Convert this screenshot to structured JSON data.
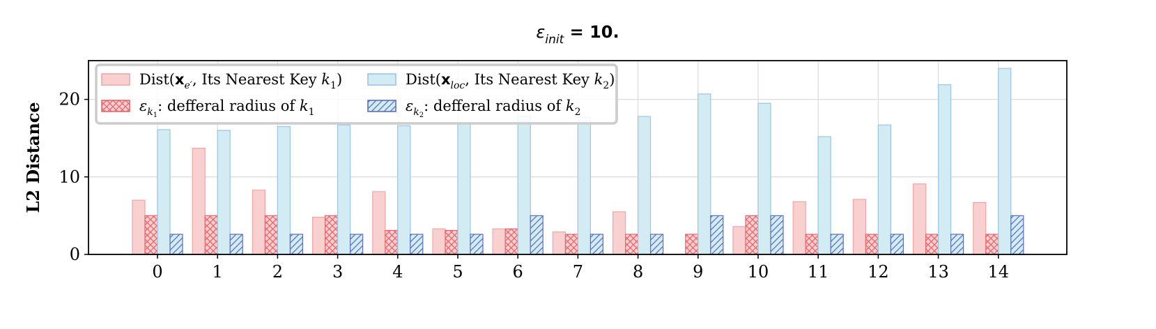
{
  "chart_data": {
    "type": "bar",
    "title": "ε_init = 10.",
    "ylabel": "L2 Distance",
    "xlabel": "",
    "categories": [
      "0",
      "1",
      "2",
      "3",
      "4",
      "5",
      "6",
      "7",
      "8",
      "9",
      "10",
      "11",
      "12",
      "13",
      "14"
    ],
    "ylim": [
      0,
      25
    ],
    "yticks": [
      0,
      10,
      20
    ],
    "grid": true,
    "legend_position": "top-left",
    "series": [
      {
        "name": "Dist(x_e′, Its Nearest Key k_1)",
        "values": [
          7.0,
          13.7,
          8.3,
          4.8,
          8.1,
          3.3,
          3.3,
          2.9,
          5.5,
          0,
          3.6,
          6.8,
          7.1,
          9.1,
          6.7
        ],
        "fill": "#f9d0d0",
        "stroke": "#f2a5a5",
        "hatch": "none"
      },
      {
        "name": "ε_k1: defferal radius of k_1",
        "values": [
          5.0,
          5.0,
          5.0,
          5.0,
          3.1,
          3.1,
          3.3,
          2.6,
          2.6,
          2.6,
          5.0,
          2.6,
          2.6,
          2.6,
          2.6
        ],
        "fill": "#f9d0d0",
        "stroke": "#e8646c",
        "hatch": "cross"
      },
      {
        "name": "Dist(x_loc, Its Nearest Key k_2)",
        "values": [
          16.1,
          16.0,
          16.5,
          16.7,
          16.6,
          16.9,
          17.8,
          17.7,
          17.8,
          20.7,
          19.5,
          15.2,
          16.7,
          21.9,
          24.0
        ],
        "fill": "#d3ebf3",
        "stroke": "#9ac6e3",
        "hatch": "none"
      },
      {
        "name": "ε_k2: defferal radius of k_2",
        "values": [
          2.6,
          2.6,
          2.6,
          2.6,
          2.6,
          2.6,
          5.0,
          2.6,
          2.6,
          5.0,
          5.0,
          2.6,
          2.6,
          2.6,
          5.0
        ],
        "fill": "#d3ebf3",
        "stroke": "#5b6ebf",
        "hatch": "diag"
      }
    ],
    "legend": [
      {
        "prefix": "Dist(",
        "bold": "x",
        "sub": "e′",
        "suffix": ", Its Nearest Key ",
        "kvar": "k",
        "ksub": "1",
        "close": ")"
      },
      {
        "prefix": "Dist(",
        "bold": "x",
        "sub": "loc",
        "suffix": ", Its Nearest Key ",
        "kvar": "k",
        "ksub": "2",
        "close": ")"
      },
      {
        "eps": "ε",
        "epssub": "k",
        "epssubsub": "1",
        "text": ": defferal radius of ",
        "kvar": "k",
        "ksub": "1"
      },
      {
        "eps": "ε",
        "epssub": "k",
        "epssubsub": "2",
        "text": ": defferal radius of ",
        "kvar": "k",
        "ksub": "2"
      }
    ]
  },
  "title_parts": {
    "eps": "ε",
    "sub": "init",
    "rest": " = 10."
  }
}
